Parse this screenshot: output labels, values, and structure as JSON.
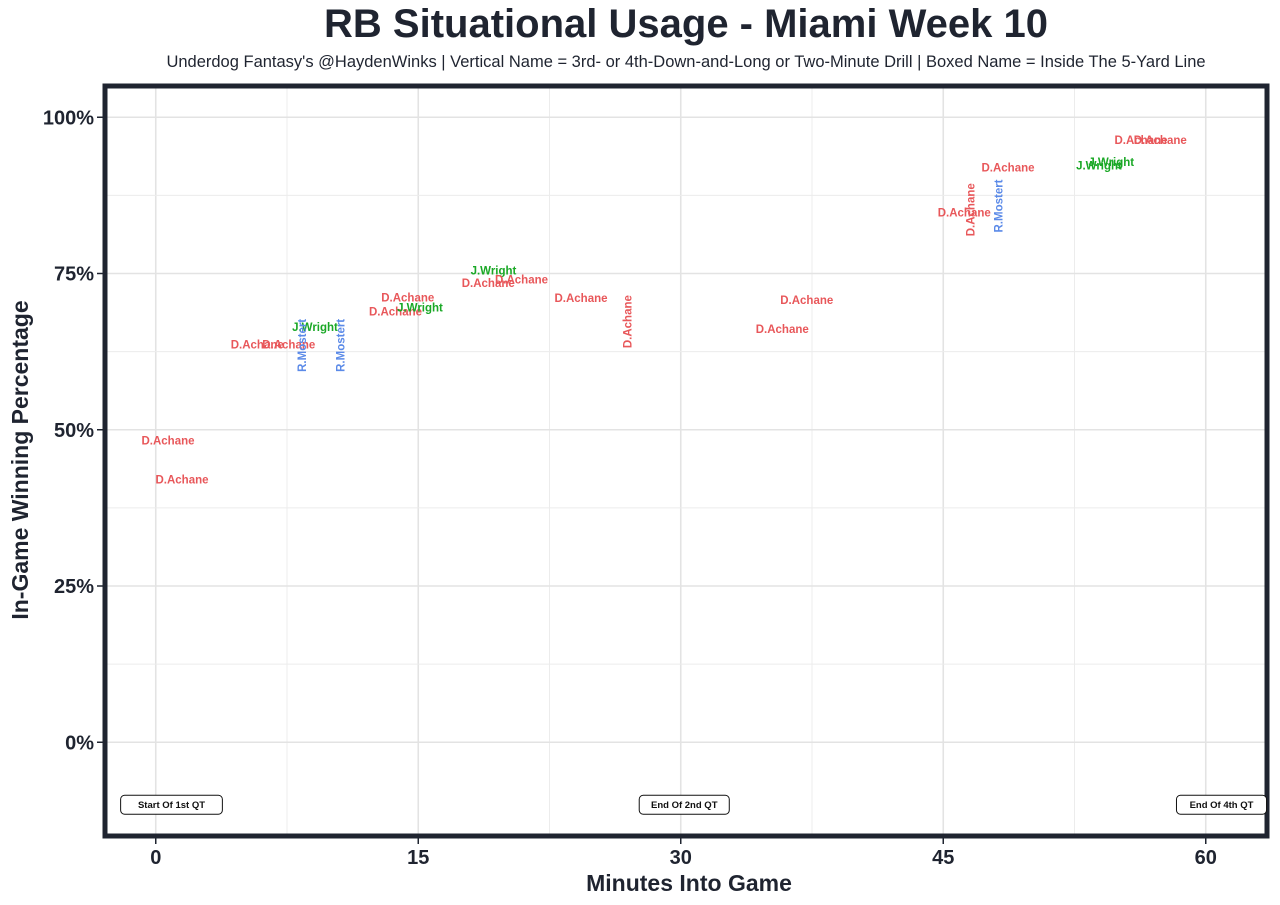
{
  "chart_data": {
    "type": "scatter",
    "title": "RB Situational Usage - Miami Week 10",
    "subtitle": "Underdog Fantasy's @HaydenWinks | Vertical Name = 3rd- or 4th-Down-and-Long or Two-Minute Drill | Boxed Name = Inside The 5-Yard Line",
    "xlabel": "Minutes Into Game",
    "ylabel": "In-Game Winning Percentage",
    "xlim": [
      -2.9,
      63.5
    ],
    "ylim": [
      -15,
      105
    ],
    "x_ticks": [
      0,
      15,
      30,
      45,
      60
    ],
    "x_tick_labels": [
      "0",
      "15",
      "30",
      "45",
      "60"
    ],
    "y_ticks": [
      0,
      25,
      50,
      75,
      100
    ],
    "y_tick_labels": [
      "0%",
      "25%",
      "50%",
      "75%",
      "100%"
    ],
    "grid": true,
    "colors": {
      "D.Achane": "#e8575a",
      "J.Wright": "#1aa826",
      "R.Mostert": "#5b8ae8"
    },
    "points": [
      {
        "x": 0.7,
        "y": 48.1,
        "player": "D.Achane",
        "vertical": false
      },
      {
        "x": 1.5,
        "y": 41.9,
        "player": "D.Achane",
        "vertical": false
      },
      {
        "x": 5.8,
        "y": 63.5,
        "player": "D.Achane",
        "vertical": false
      },
      {
        "x": 7.6,
        "y": 63.5,
        "player": "D.Achane",
        "vertical": false
      },
      {
        "x": 9.1,
        "y": 66.3,
        "player": "J.Wright",
        "vertical": false
      },
      {
        "x": 8.4,
        "y": 63.5,
        "player": "R.Mostert",
        "vertical": true
      },
      {
        "x": 10.6,
        "y": 63.5,
        "player": "R.Mostert",
        "vertical": true
      },
      {
        "x": 13.7,
        "y": 68.8,
        "player": "D.Achane",
        "vertical": false
      },
      {
        "x": 14.4,
        "y": 71.0,
        "player": "D.Achane",
        "vertical": false
      },
      {
        "x": 15.1,
        "y": 69.4,
        "player": "J.Wright",
        "vertical": false
      },
      {
        "x": 19.3,
        "y": 75.3,
        "player": "J.Wright",
        "vertical": false
      },
      {
        "x": 19.0,
        "y": 73.3,
        "player": "D.Achane",
        "vertical": false
      },
      {
        "x": 20.9,
        "y": 73.9,
        "player": "D.Achane",
        "vertical": false
      },
      {
        "x": 24.3,
        "y": 70.9,
        "player": "D.Achane",
        "vertical": false
      },
      {
        "x": 27.0,
        "y": 67.3,
        "player": "D.Achane",
        "vertical": true
      },
      {
        "x": 35.8,
        "y": 66.0,
        "player": "D.Achane",
        "vertical": false
      },
      {
        "x": 37.2,
        "y": 70.6,
        "player": "D.Achane",
        "vertical": false
      },
      {
        "x": 46.2,
        "y": 84.6,
        "player": "D.Achane",
        "vertical": false
      },
      {
        "x": 46.6,
        "y": 85.2,
        "player": "D.Achane",
        "vertical": true
      },
      {
        "x": 48.2,
        "y": 85.8,
        "player": "R.Mostert",
        "vertical": true
      },
      {
        "x": 48.7,
        "y": 91.8,
        "player": "D.Achane",
        "vertical": false
      },
      {
        "x": 53.9,
        "y": 92.1,
        "player": "J.Wright",
        "vertical": false
      },
      {
        "x": 54.6,
        "y": 92.7,
        "player": "J.Wright",
        "vertical": false
      },
      {
        "x": 56.3,
        "y": 96.2,
        "player": "D.Achane",
        "vertical": false
      },
      {
        "x": 57.4,
        "y": 96.2,
        "player": "D.Achane",
        "vertical": false
      }
    ],
    "annotations": [
      {
        "x": 0.9,
        "y": -10,
        "label": "Start Of 1st QT"
      },
      {
        "x": 30.2,
        "y": -10,
        "label": "End Of 2nd QT"
      },
      {
        "x": 60.9,
        "y": -10,
        "label": "End Of 4th QT"
      }
    ]
  }
}
